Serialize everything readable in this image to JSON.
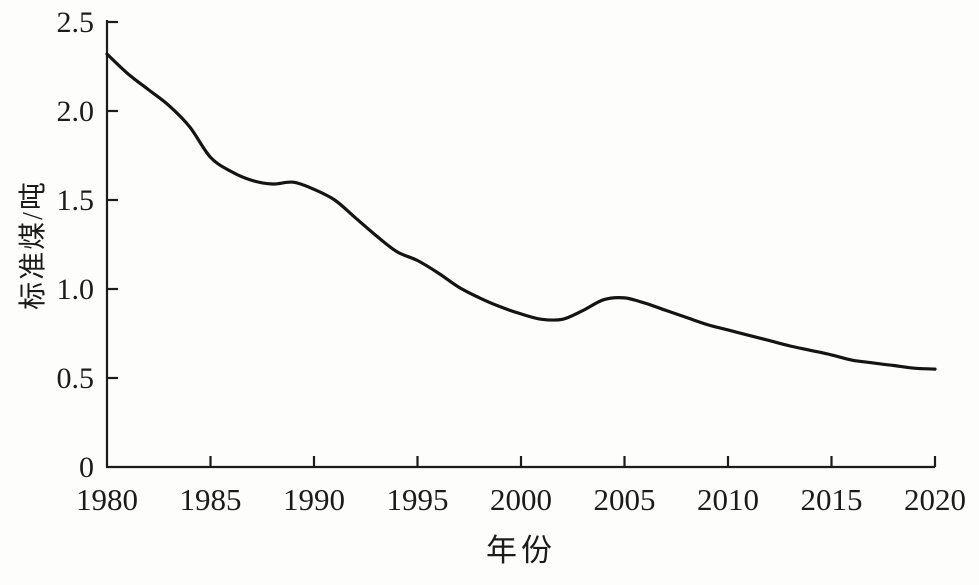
{
  "figure": {
    "background_color": "#fdfdfb",
    "ink_color": "#1b1b1b",
    "line_color": "#141414"
  },
  "chart_data": {
    "type": "line",
    "title": "",
    "xlabel": "年份",
    "ylabel": "标准煤/吨",
    "xlim": [
      1980,
      2020
    ],
    "ylim": [
      0,
      2.5
    ],
    "grid": false,
    "legend": "none",
    "x_tick_labels": [
      "1980",
      "1985",
      "1990",
      "1995",
      "2000",
      "2005",
      "2010",
      "2015",
      "2020"
    ],
    "x_tick_values": [
      1980,
      1985,
      1990,
      1995,
      2000,
      2005,
      2010,
      2015,
      2020
    ],
    "y_tick_labels": [
      "0",
      "0.5",
      "1.0",
      "1.5",
      "2.0",
      "2.5"
    ],
    "y_tick_values": [
      0,
      0.5,
      1.0,
      1.5,
      2.0,
      2.5
    ],
    "series": [
      {
        "x": [
          1980,
          1981,
          1982,
          1983,
          1984,
          1985,
          1986,
          1987,
          1988,
          1989,
          1990,
          1991,
          1992,
          1993,
          1994,
          1995,
          1996,
          1997,
          1998,
          1999,
          2000,
          2001,
          2002,
          2003,
          2004,
          2005,
          2006,
          2007,
          2008,
          2009,
          2010,
          2011,
          2012,
          2013,
          2014,
          2015,
          2016,
          2017,
          2018,
          2019,
          2020
        ],
        "values": [
          2.32,
          2.21,
          2.12,
          2.03,
          1.91,
          1.74,
          1.66,
          1.61,
          1.59,
          1.6,
          1.56,
          1.5,
          1.4,
          1.3,
          1.21,
          1.16,
          1.09,
          1.01,
          0.95,
          0.9,
          0.86,
          0.83,
          0.83,
          0.88,
          0.94,
          0.95,
          0.92,
          0.88,
          0.84,
          0.8,
          0.77,
          0.74,
          0.71,
          0.68,
          0.655,
          0.63,
          0.6,
          0.585,
          0.57,
          0.555,
          0.55
        ]
      }
    ]
  }
}
